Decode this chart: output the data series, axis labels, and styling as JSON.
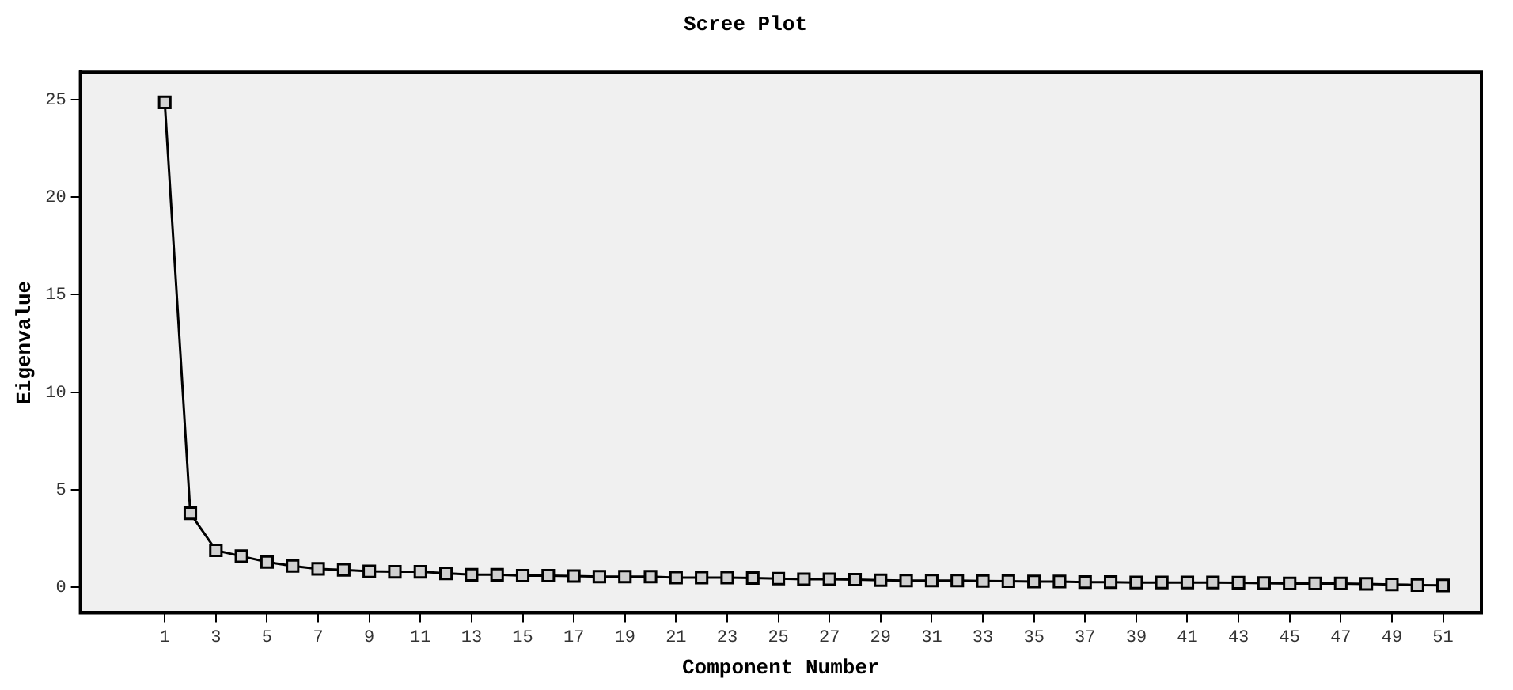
{
  "chart_data": {
    "type": "line",
    "title": "Scree Plot",
    "xlabel": "Component Number",
    "ylabel": "Eigenvalue",
    "x": [
      1,
      2,
      3,
      4,
      5,
      6,
      7,
      8,
      9,
      10,
      11,
      12,
      13,
      14,
      15,
      16,
      17,
      18,
      19,
      20,
      21,
      22,
      23,
      24,
      25,
      26,
      27,
      28,
      29,
      30,
      31,
      32,
      33,
      34,
      35,
      36,
      37,
      38,
      39,
      40,
      41,
      42,
      43,
      44,
      45,
      46,
      47,
      48,
      49,
      50,
      51
    ],
    "series": [
      {
        "color": "#000000",
        "values": [
          24.85,
          3.8,
          1.9,
          1.6,
          1.3,
          1.1,
          0.95,
          0.9,
          0.82,
          0.8,
          0.8,
          0.72,
          0.65,
          0.65,
          0.6,
          0.6,
          0.58,
          0.55,
          0.55,
          0.55,
          0.5,
          0.5,
          0.5,
          0.48,
          0.45,
          0.42,
          0.42,
          0.4,
          0.37,
          0.35,
          0.35,
          0.35,
          0.33,
          0.32,
          0.3,
          0.3,
          0.27,
          0.27,
          0.25,
          0.25,
          0.25,
          0.25,
          0.24,
          0.22,
          0.2,
          0.2,
          0.2,
          0.18,
          0.15,
          0.12,
          0.1
        ]
      }
    ],
    "xlim": [
      -2.3,
      52.5
    ],
    "xticks": [
      1,
      3,
      5,
      7,
      9,
      11,
      13,
      15,
      17,
      19,
      21,
      23,
      25,
      27,
      29,
      31,
      33,
      35,
      37,
      39,
      41,
      43,
      45,
      47,
      49,
      51
    ],
    "ylim": [
      -1.3,
      26.4
    ],
    "yticks": [
      0,
      5,
      10,
      15,
      20,
      25
    ],
    "marker": "square",
    "line_style": "solid",
    "legend": false
  }
}
